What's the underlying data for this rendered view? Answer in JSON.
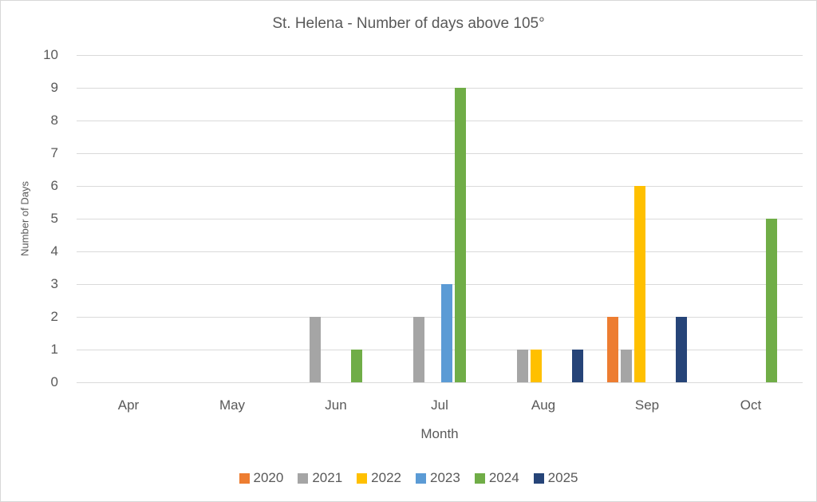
{
  "chart_data": {
    "type": "bar",
    "title": "St. Helena - Number of days above 105°",
    "xlabel": "Month",
    "ylabel": "Number of Days",
    "categories": [
      "Apr",
      "May",
      "Jun",
      "Jul",
      "Aug",
      "Sep",
      "Oct"
    ],
    "series": [
      {
        "name": "2020",
        "color": "#ED7D31",
        "values": [
          0,
          0,
          0,
          0,
          0,
          2,
          0
        ]
      },
      {
        "name": "2021",
        "color": "#A5A5A5",
        "values": [
          0,
          0,
          2,
          2,
          1,
          1,
          0
        ]
      },
      {
        "name": "2022",
        "color": "#FFC000",
        "values": [
          0,
          0,
          0,
          0,
          1,
          6,
          0
        ]
      },
      {
        "name": "2023",
        "color": "#5B9BD5",
        "values": [
          0,
          0,
          0,
          3,
          0,
          0,
          0
        ]
      },
      {
        "name": "2024",
        "color": "#70AD47",
        "values": [
          0,
          0,
          1,
          9,
          0,
          0,
          5
        ]
      },
      {
        "name": "2025",
        "color": "#264478",
        "values": [
          0,
          0,
          0,
          0,
          1,
          2,
          0
        ]
      }
    ],
    "ylim": [
      0,
      10
    ],
    "ytick_step": 1,
    "grid": "horizontal",
    "legend_position": "bottom",
    "colors": {
      "text": "#595959",
      "gridline": "#DADADA",
      "background": "#FFFFFF",
      "border": "#D7D7D7"
    }
  }
}
